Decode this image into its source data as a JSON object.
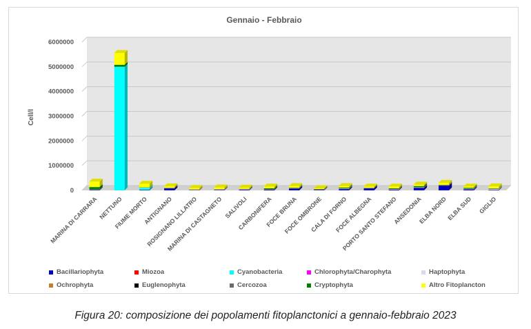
{
  "caption": "Figura 20: composizione dei popolamenti fitoplanctonici a gennaio-febbraio 2023",
  "chart_data": {
    "type": "bar",
    "stacked": true,
    "three_d": true,
    "title": "Gennaio - Febbraio",
    "xlabel": "",
    "ylabel": "Cell/l",
    "ylim": [
      0,
      6000000
    ],
    "yticks": [
      "0",
      "1000000",
      "2000000",
      "3000000",
      "4000000",
      "5000000",
      "6000000"
    ],
    "ytick_values": [
      0,
      1000000,
      2000000,
      3000000,
      4000000,
      5000000,
      6000000
    ],
    "grid": true,
    "legend_position": "bottom",
    "categories": [
      "MARINA DI CARRARA",
      "NETTUNO",
      "FIUME MORTO",
      "ANTIGNANO",
      "ROSIGNANO LILLATRO",
      "MARINA DI CASTAGNETO",
      "SALIVOLI",
      "CARBONIFERA",
      "FOCE BRUNA",
      "FOCE OMBRONE",
      "CALA DI FORNO",
      "FOCE ALBEGNA",
      "PORTO SANTO STEFANO",
      "ANSEDONIA",
      "ELBA NORD",
      "ELBA SUD",
      "GIGLIO"
    ],
    "series": [
      {
        "name": "Bacillariophyta",
        "color": "#0000c0",
        "values": [
          20000,
          0,
          15000,
          80000,
          10000,
          15000,
          25000,
          30000,
          70000,
          20000,
          50000,
          80000,
          30000,
          100000,
          190000,
          40000,
          20000
        ]
      },
      {
        "name": "Miozoa",
        "color": "#ff0000",
        "values": [
          5000,
          0,
          5000,
          5000,
          5000,
          5000,
          5000,
          5000,
          5000,
          5000,
          5000,
          5000,
          5000,
          5000,
          5000,
          5000,
          5000
        ]
      },
      {
        "name": "Cyanobacteria",
        "color": "#00ffff",
        "values": [
          0,
          5000000,
          80000,
          0,
          0,
          0,
          0,
          0,
          0,
          0,
          0,
          0,
          0,
          0,
          0,
          0,
          0
        ]
      },
      {
        "name": "Chlorophyta/Charophyta",
        "color": "#ff00ff",
        "values": [
          0,
          0,
          0,
          0,
          0,
          0,
          0,
          0,
          0,
          0,
          0,
          0,
          0,
          0,
          0,
          0,
          0
        ]
      },
      {
        "name": "Haptophyta",
        "color": "#d9d9f3",
        "values": [
          10000,
          0,
          10000,
          10000,
          20000,
          20000,
          20000,
          10000,
          10000,
          10000,
          20000,
          10000,
          20000,
          20000,
          10000,
          20000,
          40000
        ]
      },
      {
        "name": "Ochrophyta",
        "color": "#c07f2a",
        "values": [
          0,
          0,
          0,
          0,
          0,
          0,
          0,
          0,
          0,
          0,
          0,
          0,
          0,
          0,
          0,
          0,
          0
        ]
      },
      {
        "name": "Euglenophyta",
        "color": "#000000",
        "values": [
          0,
          0,
          0,
          0,
          0,
          0,
          0,
          0,
          0,
          0,
          0,
          0,
          0,
          0,
          0,
          0,
          0
        ]
      },
      {
        "name": "Cercozoa",
        "color": "#6b6b6b",
        "values": [
          0,
          0,
          0,
          0,
          0,
          0,
          0,
          0,
          0,
          0,
          0,
          0,
          0,
          0,
          0,
          0,
          0
        ]
      },
      {
        "name": "Cryptophyta",
        "color": "#008000",
        "values": [
          100000,
          80000,
          10000,
          10000,
          5000,
          10000,
          10000,
          40000,
          20000,
          20000,
          40000,
          10000,
          30000,
          50000,
          20000,
          40000,
          20000
        ]
      },
      {
        "name": "Altro Fitoplancton",
        "color": "#ffff00",
        "values": [
          220000,
          480000,
          150000,
          60000,
          60000,
          70000,
          50000,
          70000,
          70000,
          30000,
          60000,
          50000,
          70000,
          60000,
          80000,
          50000,
          80000
        ]
      }
    ]
  }
}
